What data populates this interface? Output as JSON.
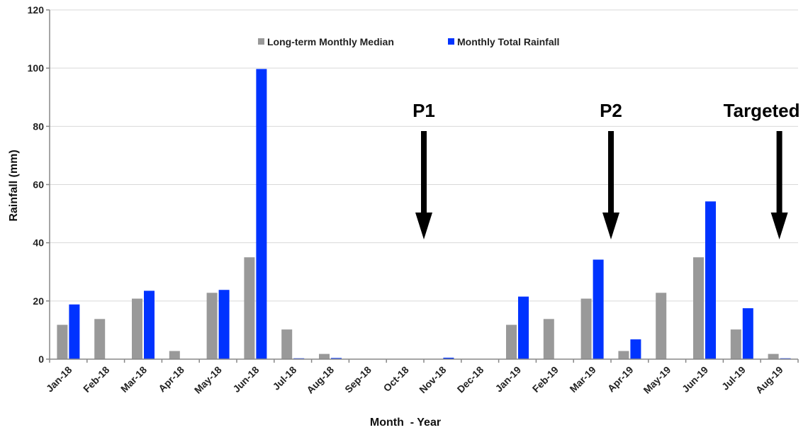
{
  "chart_data": {
    "type": "bar",
    "xlabel": "Month  - Year",
    "ylabel": "Rainfall (mm)",
    "ylim": [
      0,
      120
    ],
    "yticks": [
      0,
      20,
      40,
      60,
      80,
      100,
      120
    ],
    "grid": true,
    "legend_position": "top-center",
    "categories": [
      "Jan-18",
      "Feb-18",
      "Mar-18",
      "Apr-18",
      "May-18",
      "Jun-18",
      "Jul-18",
      "Aug-18",
      "Sep-18",
      "Oct-18",
      "Nov-18",
      "Dec-18",
      "Jan-19",
      "Feb-19",
      "Mar-19",
      "Apr-19",
      "May-19",
      "Jun-19",
      "Jul-19",
      "Aug-19"
    ],
    "series": [
      {
        "name": "Long-term Monthly Median",
        "color": "#999999",
        "values": [
          11.8,
          13.8,
          20.8,
          2.8,
          22.8,
          35,
          10.2,
          1.8,
          0,
          0,
          0,
          0,
          11.8,
          13.8,
          20.8,
          2.8,
          22.8,
          35,
          10.2,
          1.8
        ]
      },
      {
        "name": "Monthly Total Rainfall",
        "color": "#0033ff",
        "values": [
          18.8,
          0,
          23.5,
          0,
          23.8,
          99.7,
          0.3,
          0.4,
          0,
          0,
          0.5,
          0,
          21.5,
          0,
          34.2,
          6.8,
          0,
          54.2,
          17.5,
          0.3
        ]
      }
    ],
    "annotations": [
      {
        "label": "P1",
        "category": "Nov-18",
        "offset": -0.5
      },
      {
        "label": "P2",
        "category": "Apr-19",
        "offset": -0.5
      },
      {
        "label": "Targeted",
        "category": "Aug-19",
        "offset": 0
      }
    ]
  }
}
